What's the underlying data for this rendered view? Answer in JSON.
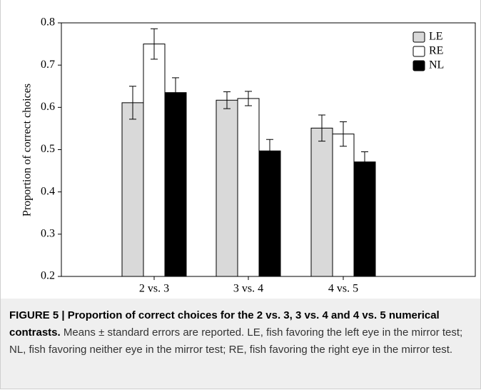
{
  "chart_data": {
    "type": "bar",
    "y_label": "Proportion of correct choices",
    "categories": [
      "2 vs. 3",
      "3 vs. 4",
      "4 vs. 5"
    ],
    "series": [
      {
        "name": "LE",
        "color": "#d9d9d9",
        "values": [
          0.611,
          0.617,
          0.551
        ],
        "errors": [
          0.039,
          0.02,
          0.031
        ]
      },
      {
        "name": "RE",
        "color": "#ffffff",
        "values": [
          0.75,
          0.621,
          0.537
        ],
        "errors": [
          0.036,
          0.017,
          0.029
        ]
      },
      {
        "name": "NL",
        "color": "#000000",
        "values": [
          0.635,
          0.497,
          0.471
        ],
        "errors": [
          0.035,
          0.027,
          0.024
        ]
      }
    ],
    "ylim": [
      0.2,
      0.8
    ],
    "yticks": [
      0.2,
      0.3,
      0.4,
      0.5,
      0.6,
      0.7,
      0.8
    ],
    "legend": "upper right"
  },
  "caption": {
    "label": "FIGURE 5 | Proportion of correct choices for the 2 vs. 3, 3 vs. 4 and 4 vs. 5 numerical contrasts.",
    "text": "Means ± standard errors are reported. LE, fish favoring the left eye in the mirror test; NL, fish favoring neither eye in the mirror test; RE, fish favoring the right eye in the mirror test."
  }
}
